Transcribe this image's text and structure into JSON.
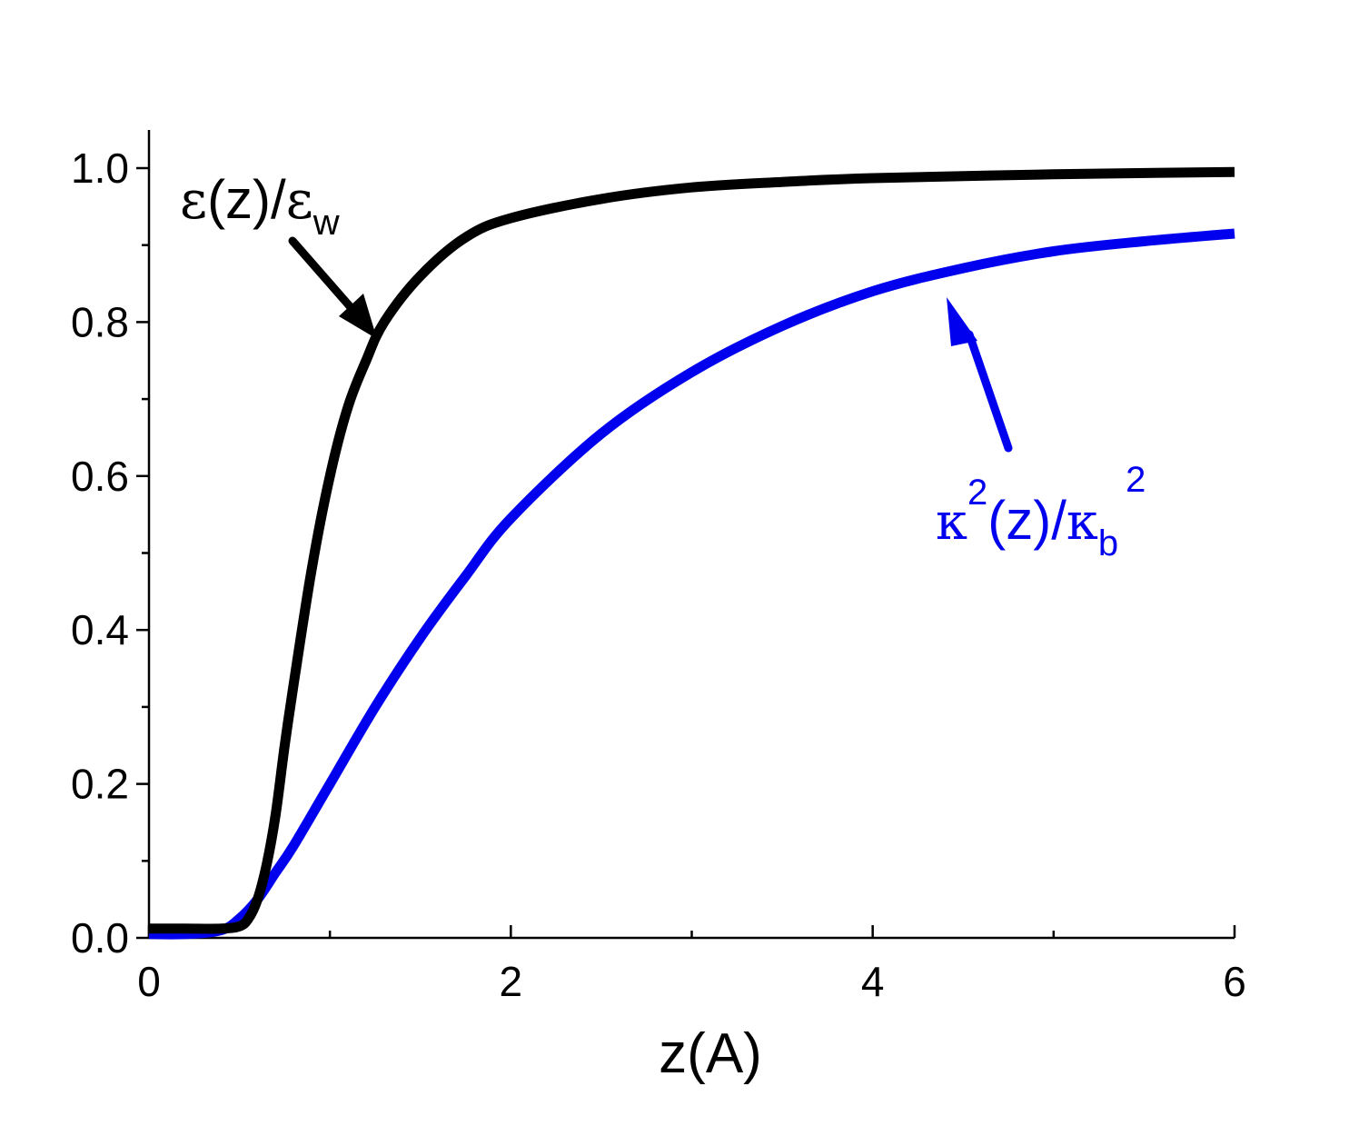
{
  "chart_data": {
    "type": "line",
    "title": "",
    "xlabel": "z(A)",
    "ylabel": "",
    "xlim": [
      0,
      6
    ],
    "ylim": [
      0,
      1.05
    ],
    "x_ticks": [
      0,
      2,
      4,
      6
    ],
    "x_tick_labels": [
      "0",
      "2",
      "4",
      "6"
    ],
    "x_minor_ticks": [
      1,
      3,
      5
    ],
    "y_ticks": [
      0.0,
      0.2,
      0.4,
      0.6,
      0.8,
      1.0
    ],
    "y_tick_labels": [
      "0.0",
      "0.2",
      "0.4",
      "0.6",
      "0.8",
      "1.0"
    ],
    "y_minor_ticks": [
      0.1,
      0.3,
      0.5,
      0.7,
      0.9
    ],
    "grid": false,
    "series": [
      {
        "color": "#000000",
        "x": [
          0,
          0.2,
          0.4,
          0.5,
          0.55,
          0.6,
          0.65,
          0.7,
          0.75,
          0.8,
          0.9,
          1.0,
          1.1,
          1.2,
          1.3,
          1.5,
          1.75,
          2.0,
          2.5,
          3.0,
          3.5,
          4.0,
          5.0,
          6.0
        ],
        "y": [
          0.012,
          0.012,
          0.012,
          0.015,
          0.025,
          0.05,
          0.095,
          0.16,
          0.25,
          0.33,
          0.48,
          0.6,
          0.69,
          0.75,
          0.8,
          0.86,
          0.91,
          0.935,
          0.96,
          0.975,
          0.982,
          0.987,
          0.992,
          0.995
        ]
      },
      {
        "color": "#0000ee",
        "x": [
          0,
          0.2,
          0.4,
          0.5,
          0.6,
          0.7,
          0.8,
          1.0,
          1.25,
          1.5,
          1.75,
          2.0,
          2.5,
          3.0,
          3.5,
          4.0,
          4.5,
          5.0,
          5.5,
          6.0
        ],
        "y": [
          0.005,
          0.005,
          0.01,
          0.025,
          0.05,
          0.085,
          0.12,
          0.2,
          0.3,
          0.39,
          0.47,
          0.545,
          0.655,
          0.735,
          0.795,
          0.84,
          0.87,
          0.892,
          0.905,
          0.915
        ]
      }
    ],
    "annotations": [
      {
        "color": "#000000",
        "symbol": "ε",
        "text_1": "(z)/",
        "symbol_2": "ε",
        "subscript": "w"
      },
      {
        "color": "#0000ee",
        "symbol": "κ",
        "superscript_1": "2",
        "text_1": "(z)/",
        "symbol_2": "κ",
        "subscript": "b",
        "superscript_2": "2"
      }
    ]
  }
}
